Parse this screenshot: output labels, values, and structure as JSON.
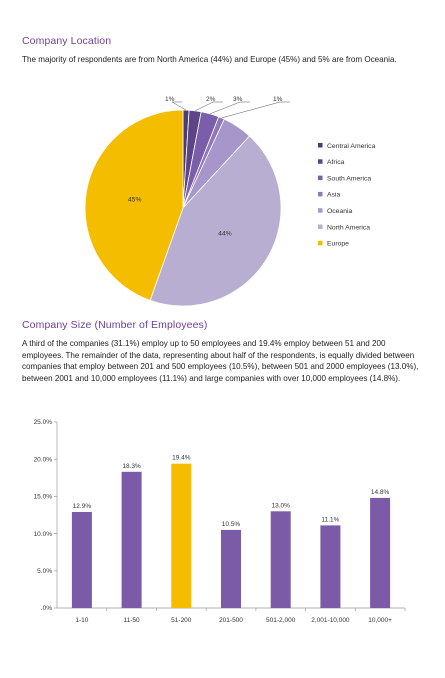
{
  "sections": {
    "location": {
      "heading": "Company Location",
      "text": "The majority of respondents are from North America (44%) and Europe (45%) and 5% are from Oceania."
    },
    "size": {
      "heading": "Company Size (Number of Employees)",
      "text": "A third of the companies (31.1%) employ up to 50 employees and 19.4% employ between 51 and 200 employees. The remainder of the data, representing about half of the respondents, is equally divided between companies that employ between 201 and 500 employees (10.5%), between 501 and 2000 employees (13.0%), between 2001 and 10,000 employees (11.1%) and large companies with over 10,000 employees (14.8%)."
    }
  },
  "chart_data": [
    {
      "type": "pie",
      "slices": [
        {
          "label": "Central America",
          "value": 1,
          "data_label": "1%",
          "color": "#4d3b74"
        },
        {
          "label": "Africa",
          "value": 2,
          "data_label": "2%",
          "color": "#5c4486"
        },
        {
          "label": "South America",
          "value": 3,
          "data_label": "3%",
          "color": "#7a5ea9"
        },
        {
          "label": "Asia",
          "value": 1,
          "data_label": "1%",
          "color": "#8f78b8"
        },
        {
          "label": "Oceania",
          "value": 5,
          "data_label": "",
          "color": "#a796c9"
        },
        {
          "label": "North America",
          "value": 44,
          "data_label": "44%",
          "color": "#b8aed2"
        },
        {
          "label": "Europe",
          "value": 45,
          "data_label": "45%",
          "color": "#f5bd00"
        }
      ],
      "legend_position": "right"
    },
    {
      "type": "bar",
      "categories": [
        "1-10",
        "11-50",
        "51-200",
        "201-500",
        "501-2,000",
        "2,001-10,000",
        "10,000+"
      ],
      "values": [
        12.9,
        18.3,
        19.4,
        10.5,
        13.0,
        11.1,
        14.8
      ],
      "data_labels": [
        "12.9%",
        "18.3%",
        "19.4%",
        "10.5%",
        "13.0%",
        "11.1%",
        "14.8%"
      ],
      "colors": [
        "#7b5ba7",
        "#7b5ba7",
        "#f5bd00",
        "#7b5ba7",
        "#7b5ba7",
        "#7b5ba7",
        "#7b5ba7"
      ],
      "ylim": [
        0,
        25
      ],
      "yticks": [
        0,
        5,
        10,
        15,
        20,
        25
      ],
      "ytick_labels": [
        ".0%",
        "5.0%",
        "10.0%",
        "15.0%",
        "20.0%",
        "25.0%"
      ],
      "grid": false
    }
  ]
}
